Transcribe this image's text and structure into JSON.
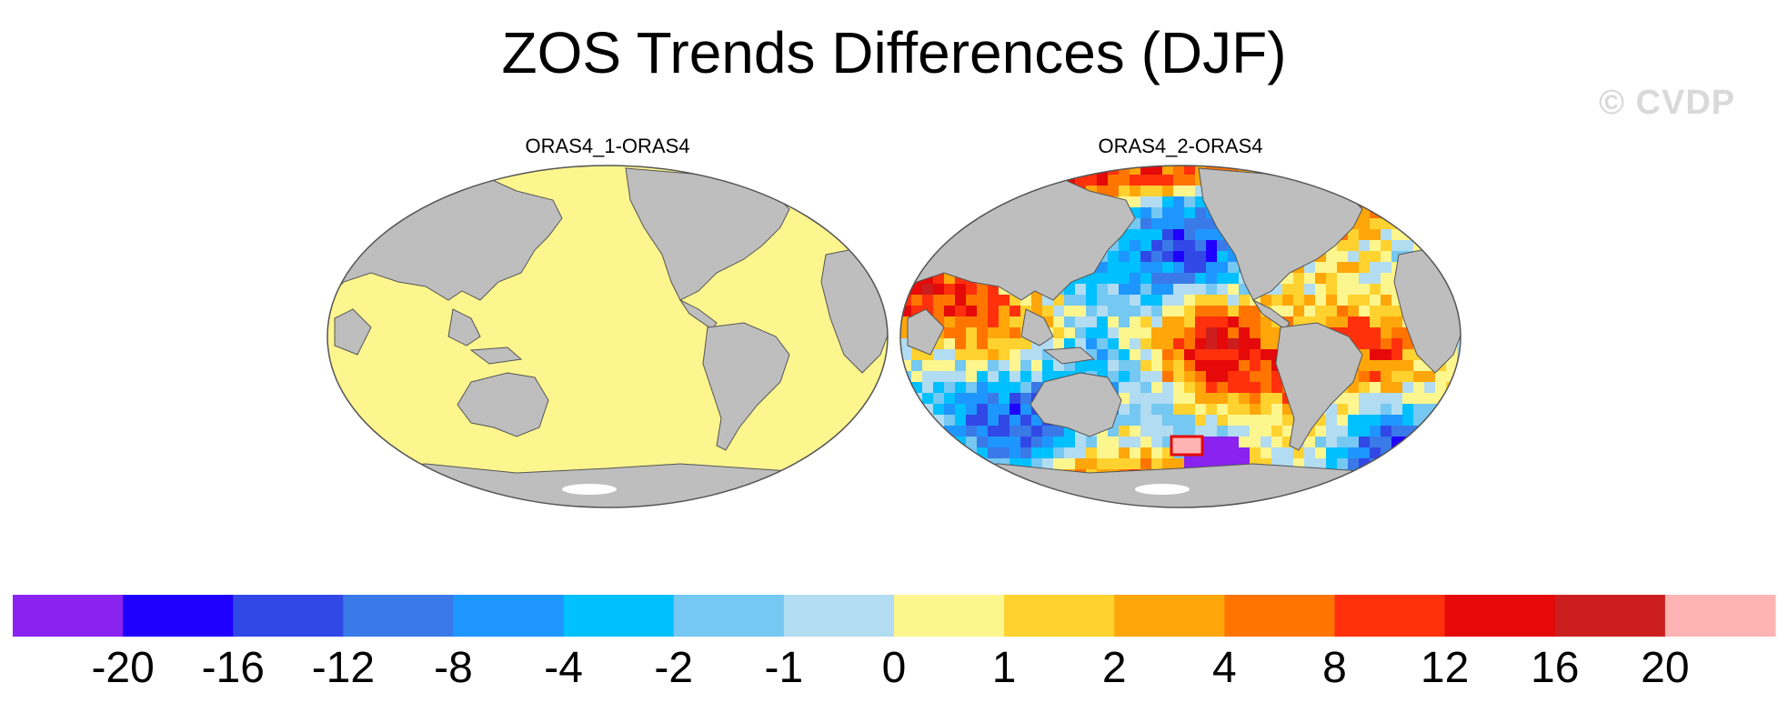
{
  "title": "ZOS Trends Differences (DJF)",
  "watermark": "© CVDP",
  "panels": [
    {
      "label": "ORAS4_1-ORAS4"
    },
    {
      "label": "ORAS4_2-ORAS4"
    }
  ],
  "colorbar": {
    "colors": [
      "#8a22f0",
      "#1f00ff",
      "#3148e6",
      "#3a7ae8",
      "#1e96ff",
      "#00c0ff",
      "#74c8f2",
      "#b2dcf2",
      "#fdf68e",
      "#ffd22f",
      "#ffa60a",
      "#ff7500",
      "#ff300c",
      "#e50909",
      "#cc1e1e",
      "#ffb3b3"
    ],
    "tick_labels": [
      "-20",
      "-16",
      "-12",
      "-8",
      "-4",
      "-2",
      "-1",
      "0",
      "1",
      "2",
      "4",
      "8",
      "12",
      "16",
      "20"
    ]
  },
  "style": {
    "land": "#bebebe",
    "ocean_zero": "#fdf68e",
    "ice": "#ffffff",
    "outline": "#555555"
  }
}
